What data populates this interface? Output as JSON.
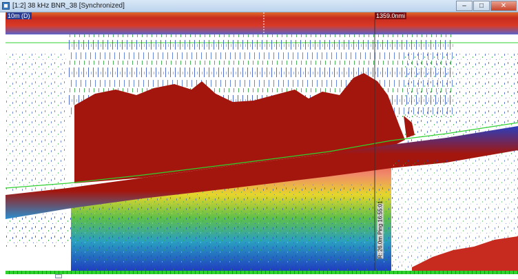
{
  "window": {
    "title": "[1:2] 38 kHz BNR_38 [Synchronized]",
    "minimize_glyph": "–",
    "maximize_glyph": "□",
    "close_glyph": "✕"
  },
  "echogram": {
    "range_label": "10m (D)",
    "distance_label": "1359.0nmi",
    "cursor_readout": "R: 26.0m Ping 16:55:01"
  },
  "colors": {
    "strong_echo": "#a3160e",
    "surface_band": "#c72a1f",
    "weak_echo_blue": "#1f3fbf",
    "mid_echo_green": "#2aa83a",
    "mid_echo_yellow": "#e6d52b",
    "line_green": "#2fd12f"
  },
  "icons": {
    "window_icon": "echogram-app-icon"
  }
}
